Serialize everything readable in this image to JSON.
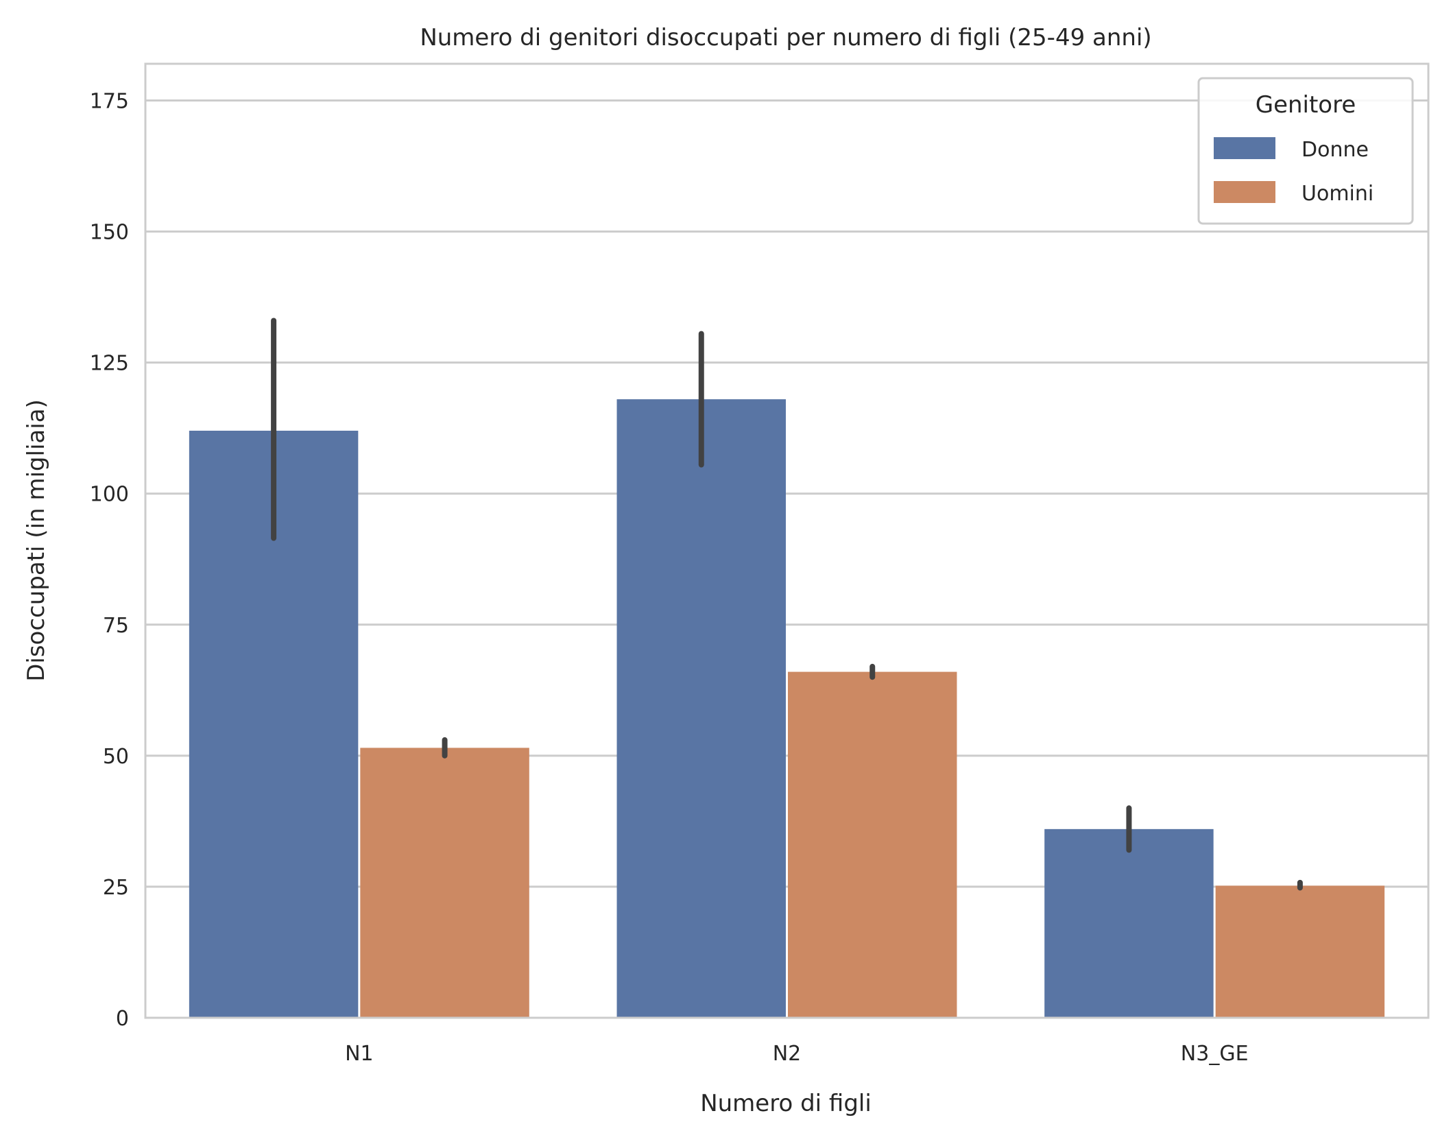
{
  "chart_data": {
    "type": "bar",
    "title": "Numero di genitori disoccupati per numero di figli (25-49 anni)",
    "xlabel": "Numero di figli",
    "ylabel": "Disoccupati (in migliaia)",
    "categories": [
      "N1",
      "N2",
      "N3_GE"
    ],
    "yticks": [
      0,
      25,
      50,
      75,
      100,
      125,
      150,
      175
    ],
    "ylim": [
      0,
      182
    ],
    "grid": true,
    "legend": {
      "title": "Genitore",
      "placement": "top-right"
    },
    "series": [
      {
        "name": "Donne",
        "color": "#5975a4",
        "values": [
          112,
          118,
          36
        ],
        "error_low": [
          91.5,
          105.5,
          32
        ],
        "error_high": [
          133,
          130.5,
          40
        ]
      },
      {
        "name": "Uomini",
        "color": "#cc8963",
        "values": [
          51.5,
          66,
          25.2
        ],
        "error_low": [
          50,
          65,
          24.8
        ],
        "error_high": [
          53,
          67,
          25.8
        ]
      }
    ]
  }
}
